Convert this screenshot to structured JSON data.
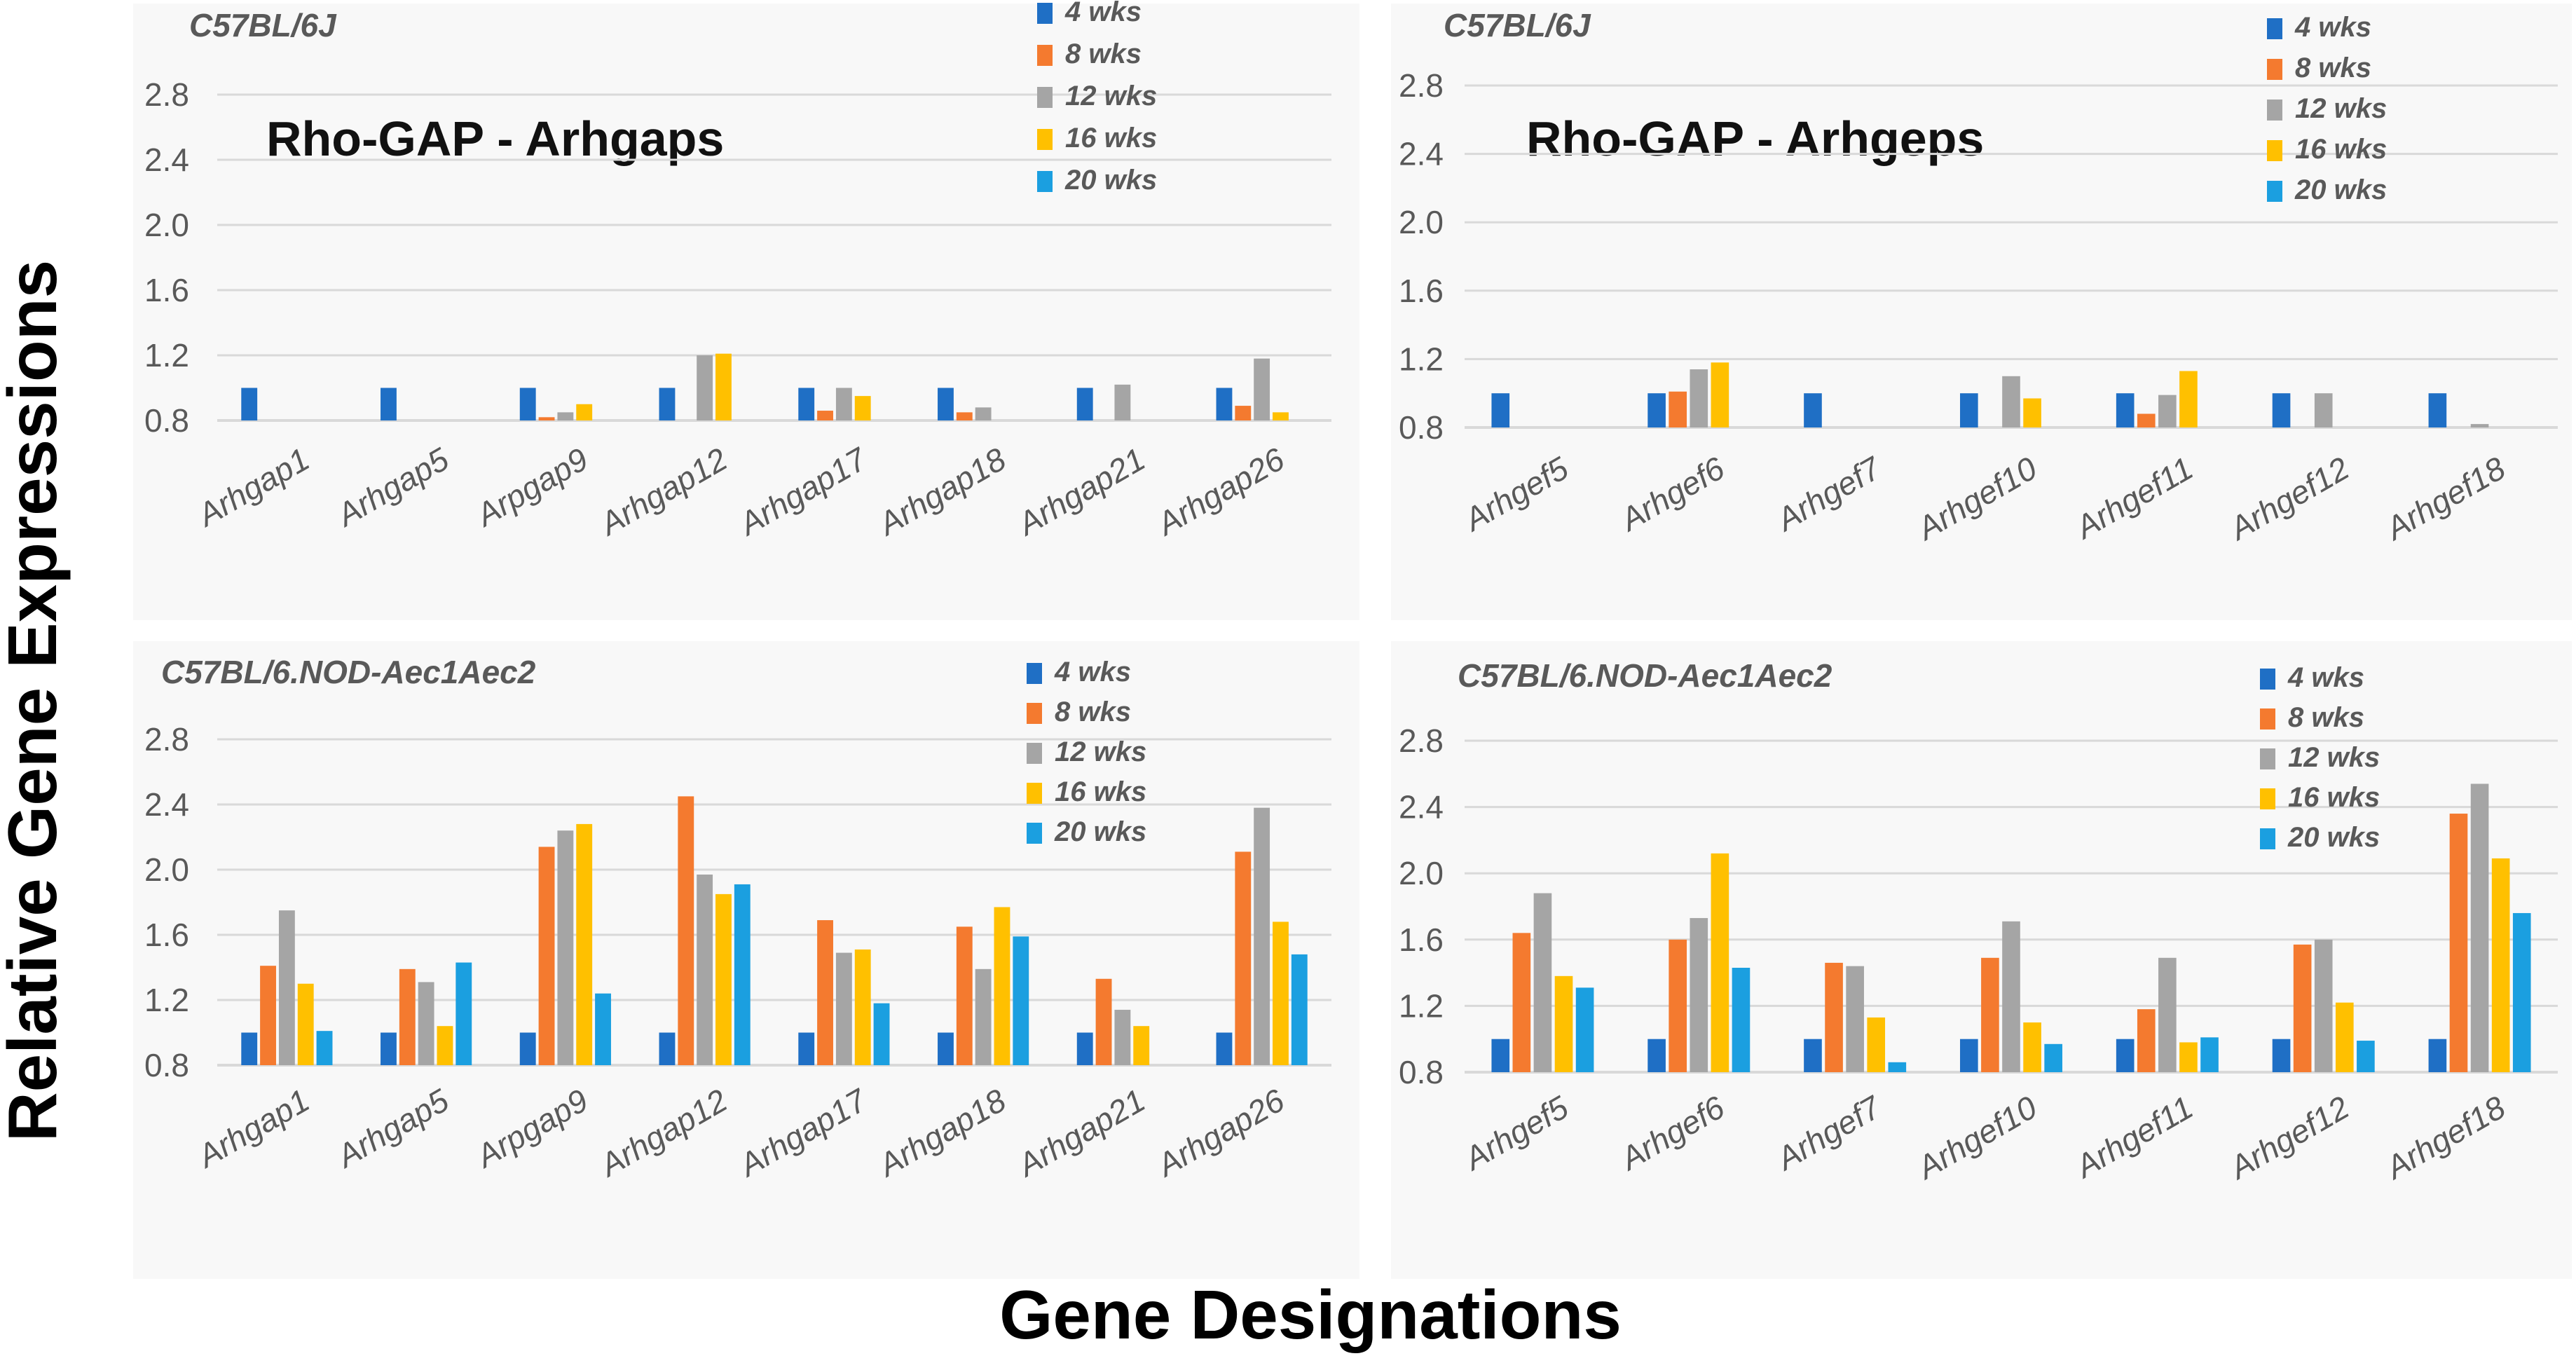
{
  "figure": {
    "ylabel": "Relative Gene Expressions",
    "xlabel": "Gene Designations"
  },
  "legend": {
    "labels": [
      "4 wks",
      "8 wks",
      "12 wks",
      "16 wks",
      "20 wks"
    ],
    "colors": [
      "#1f6fc5",
      "#f47a2f",
      "#a5a5a5",
      "#ffc000",
      "#1b9fe0"
    ]
  },
  "chart_data": [
    {
      "type": "bar",
      "strain": "C57BL/6J",
      "subtitle": "Rho-GAP  - Arhgaps",
      "categories": [
        "Arhgap1",
        "Arhgap5",
        "Arpgap9",
        "Arhgap12",
        "Arhgap17",
        "Arhgap18",
        "Arhgap21",
        "Arhgap26"
      ],
      "ylim": [
        0.8,
        2.8
      ],
      "yticks": [
        "2.8",
        "2.4",
        "2.0",
        "1.6",
        "1.2",
        "0.8"
      ],
      "series": [
        {
          "name": "4 wks",
          "values": [
            1.0,
            1.0,
            1.0,
            1.0,
            1.0,
            1.0,
            1.0,
            1.0
          ]
        },
        {
          "name": "8 wks",
          "values": [
            null,
            null,
            0.82,
            null,
            0.86,
            0.85,
            null,
            0.89
          ]
        },
        {
          "name": "12 wks",
          "values": [
            null,
            null,
            0.85,
            1.2,
            1.0,
            0.88,
            1.02,
            1.18
          ]
        },
        {
          "name": "16 wks",
          "values": [
            null,
            null,
            0.9,
            1.21,
            0.95,
            null,
            null,
            0.85
          ]
        },
        {
          "name": "20 wks",
          "values": [
            null,
            null,
            null,
            null,
            null,
            null,
            null,
            null
          ]
        }
      ]
    },
    {
      "type": "bar",
      "strain": "C57BL/6J",
      "subtitle": "Rho-GAP  - Arhgeps",
      "categories": [
        "Arhgef5",
        "Arhgef6",
        "Arhgef7",
        "Arhgef10",
        "Arhgef11",
        "Arhgef12",
        "Arhgef18"
      ],
      "ylim": [
        0.8,
        2.8
      ],
      "yticks": [
        "2.8",
        "2.4",
        "2.0",
        "1.6",
        "1.2",
        "0.8"
      ],
      "series": [
        {
          "name": "4 wks",
          "values": [
            1.0,
            1.0,
            1.0,
            1.0,
            1.0,
            1.0,
            1.0
          ]
        },
        {
          "name": "8 wks",
          "values": [
            null,
            1.01,
            null,
            null,
            0.88,
            null,
            null
          ]
        },
        {
          "name": "12 wks",
          "values": [
            null,
            1.14,
            null,
            1.1,
            0.99,
            1.0,
            0.82
          ]
        },
        {
          "name": "16 wks",
          "values": [
            null,
            1.18,
            null,
            0.97,
            1.13,
            null,
            null
          ]
        },
        {
          "name": "20 wks",
          "values": [
            null,
            null,
            null,
            null,
            null,
            null,
            null
          ]
        }
      ]
    },
    {
      "type": "bar",
      "strain": "C57BL/6.NOD-Aec1Aec2",
      "subtitle": "",
      "categories": [
        "Arhgap1",
        "Arhgap5",
        "Arpgap9",
        "Arhgap12",
        "Arhgap17",
        "Arhgap18",
        "Arhgap21",
        "Arhgap26"
      ],
      "ylim": [
        0.8,
        2.8
      ],
      "yticks": [
        "2.8",
        "2.4",
        "2.0",
        "1.6",
        "1.2",
        "0.8"
      ],
      "series": [
        {
          "name": "4 wks",
          "values": [
            1.0,
            1.0,
            1.0,
            1.0,
            1.0,
            1.0,
            1.0,
            1.0
          ]
        },
        {
          "name": "8 wks",
          "values": [
            1.41,
            1.39,
            2.14,
            2.45,
            1.69,
            1.65,
            1.33,
            2.11
          ]
        },
        {
          "name": "12 wks",
          "values": [
            1.75,
            1.31,
            2.24,
            1.97,
            1.49,
            1.39,
            1.14,
            2.38
          ]
        },
        {
          "name": "16 wks",
          "values": [
            1.3,
            1.04,
            2.28,
            1.85,
            1.51,
            1.77,
            1.04,
            1.68
          ]
        },
        {
          "name": "20 wks",
          "values": [
            1.01,
            1.43,
            1.24,
            1.91,
            1.18,
            1.59,
            null,
            1.48
          ]
        }
      ]
    },
    {
      "type": "bar",
      "strain": "C57BL/6.NOD-Aec1Aec2",
      "subtitle": "",
      "categories": [
        "Arhgef5",
        "Arhgef6",
        "Arhgef7",
        "Arhgef10",
        "Arhgef11",
        "Arhgef12",
        "Arhgef18"
      ],
      "ylim": [
        0.8,
        2.8
      ],
      "yticks": [
        "2.8",
        "2.4",
        "2.0",
        "1.6",
        "1.2",
        "0.8"
      ],
      "series": [
        {
          "name": "4 wks",
          "values": [
            1.0,
            1.0,
            1.0,
            1.0,
            1.0,
            1.0,
            1.0
          ]
        },
        {
          "name": "8 wks",
          "values": [
            1.64,
            1.6,
            1.46,
            1.49,
            1.18,
            1.57,
            2.36
          ]
        },
        {
          "name": "12 wks",
          "values": [
            1.88,
            1.73,
            1.44,
            1.71,
            1.49,
            1.6,
            2.54
          ]
        },
        {
          "name": "16 wks",
          "values": [
            1.38,
            2.12,
            1.13,
            1.1,
            0.98,
            1.22,
            2.09
          ]
        },
        {
          "name": "20 wks",
          "values": [
            1.31,
            1.43,
            0.86,
            0.97,
            1.01,
            0.99,
            1.76
          ]
        }
      ]
    }
  ]
}
